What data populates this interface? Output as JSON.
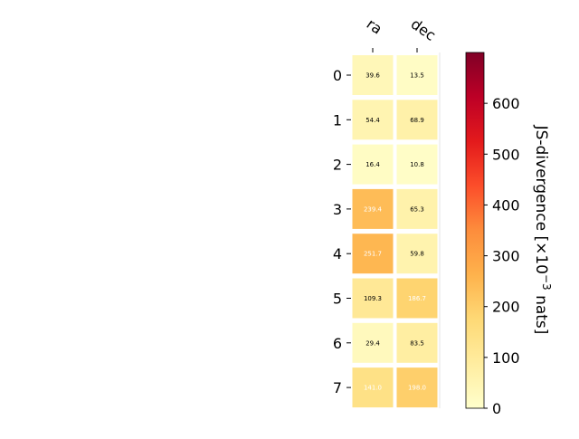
{
  "chart_data": {
    "type": "heatmap",
    "columns": [
      "ra",
      "dec"
    ],
    "rows": [
      "0",
      "1",
      "2",
      "3",
      "4",
      "5",
      "6",
      "7"
    ],
    "values": [
      [
        39.6,
        13.5
      ],
      [
        54.4,
        68.9
      ],
      [
        16.4,
        10.8
      ],
      [
        239.4,
        65.3
      ],
      [
        251.7,
        59.8
      ],
      [
        109.3,
        186.7
      ],
      [
        29.4,
        83.5
      ],
      [
        141.0,
        198.0
      ]
    ],
    "cell_labels": [
      [
        "39.6",
        "13.5"
      ],
      [
        "54.4",
        "68.9"
      ],
      [
        "16.4",
        "10.8"
      ],
      [
        "239.4",
        "65.3"
      ],
      [
        "251.7",
        "59.8"
      ],
      [
        "109.3",
        "186.7"
      ],
      [
        "29.4",
        "83.5"
      ],
      [
        "141.0",
        "198.0"
      ]
    ],
    "colorbar": {
      "label_prefix": "JS-divergence [×10",
      "label_exponent": "−3",
      "label_suffix": " nats]",
      "range": [
        0,
        700
      ],
      "ticks": [
        "0",
        "100",
        "200",
        "300",
        "400",
        "500",
        "600"
      ],
      "colormap": "YlOrRd",
      "stops": [
        "#ffffcc",
        "#ffeda0",
        "#fed976",
        "#feb24c",
        "#fd8d3c",
        "#fc4e2a",
        "#e31a1c",
        "#bd0026",
        "#800026"
      ]
    }
  }
}
